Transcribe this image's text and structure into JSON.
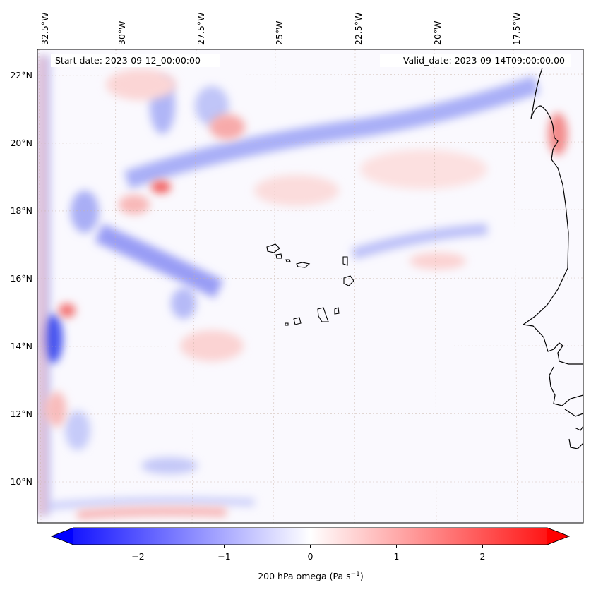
{
  "header": {
    "start_date": "Start date: 2023-09-12_00:00:00",
    "valid_date": "Valid_date: 2023-09-14T09:00:00.00"
  },
  "lon_labels": [
    "32.5°W",
    "30°W",
    "27.5°W",
    "25°W",
    "22.5°W",
    "20°W",
    "17.5°W"
  ],
  "lat_labels": [
    "22°N",
    "20°N",
    "18°N",
    "16°N",
    "14°N",
    "12°N",
    "10°N"
  ],
  "colorbar": {
    "label": "200 hPa omega (Pa s",
    "label_sup": "−1",
    "label_end": ")",
    "ticks": [
      "−2",
      "−1",
      "0",
      "1",
      "2"
    ],
    "min": -2.75,
    "max": 2.75,
    "colormap": "bwr",
    "extend": "both"
  },
  "colors": {
    "negative": "#0000ff",
    "positive": "#ff0000",
    "neutral": "#ffffff",
    "coastline": "#000000",
    "gridline": "#c9b2a6"
  }
}
